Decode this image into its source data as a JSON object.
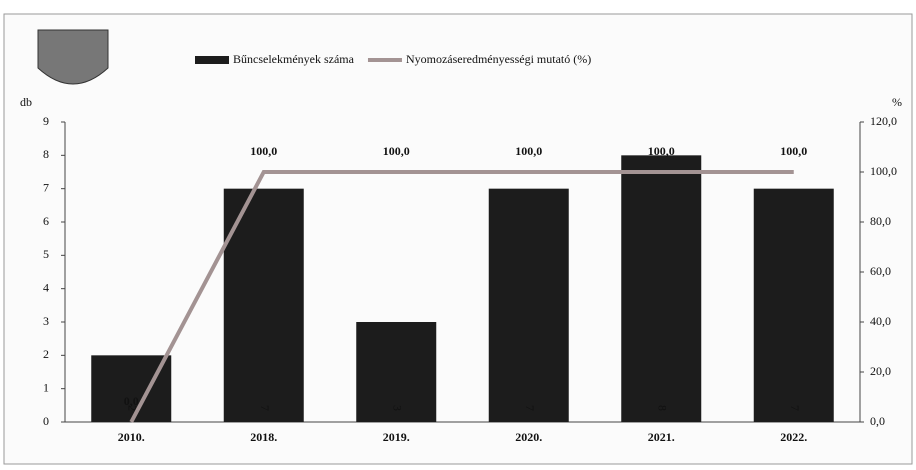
{
  "chart_data": {
    "type": "bar-line",
    "categories": [
      "2010.",
      "2018.",
      "2019.",
      "2020.",
      "2021.",
      "2022."
    ],
    "series": [
      {
        "name": "Bűncselekmények száma",
        "type": "bar",
        "color": "#1c1c1c",
        "values": [
          2,
          7,
          3,
          7,
          8,
          7
        ]
      },
      {
        "name": "Nyomozáseredményességi mutató (%)",
        "type": "line",
        "axis": "y2",
        "color": "#a39393",
        "values": [
          0.0,
          100.0,
          100.0,
          100.0,
          100.0,
          100.0
        ],
        "value_labels": [
          "0,0",
          "100,0",
          "100,0",
          "100,0",
          "100,0",
          "100,0"
        ]
      }
    ],
    "ylabel": "db",
    "y2label": "%",
    "ylim": [
      0,
      9
    ],
    "yticks": [
      0,
      1,
      2,
      3,
      4,
      5,
      6,
      7,
      8,
      9
    ],
    "y2lim": [
      0,
      120
    ],
    "y2ticks": [
      {
        "value": 0,
        "label": "0,0"
      },
      {
        "value": 20,
        "label": "20,0"
      },
      {
        "value": 40,
        "label": "40,0"
      },
      {
        "value": 60,
        "label": "60,0"
      },
      {
        "value": 80,
        "label": "80,0"
      },
      {
        "value": 100,
        "label": "100,0"
      },
      {
        "value": 120,
        "label": "120,0"
      }
    ],
    "legend": "top"
  }
}
